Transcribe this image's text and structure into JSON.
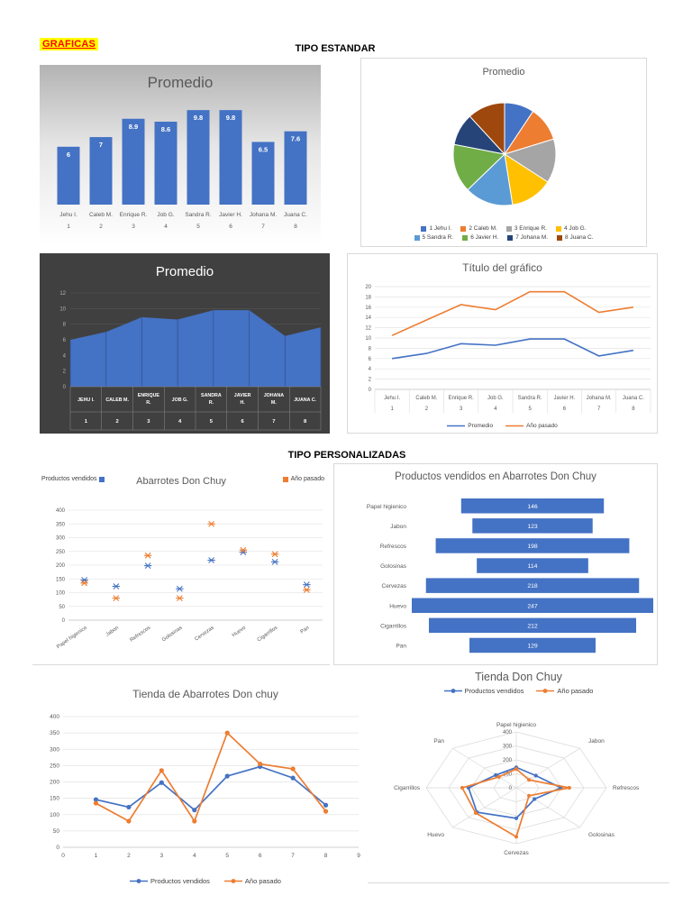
{
  "page": {
    "tag_label": "GRAFICAS",
    "section_standard": "TIPO ESTANDAR",
    "section_custom": "TIPO PERSONALIZADAS"
  },
  "colors": {
    "accent_blue": "#4472c4",
    "accent_orange": "#ed7d31",
    "title_gray": "#595959",
    "tag_text": "#ff0000",
    "tag_highlight": "#ffff00",
    "area_background": "#404040"
  },
  "chart_data": [
    {
      "type": "bar",
      "title": "Promedio",
      "categories": [
        "Jehu I.",
        "Caleb M.",
        "Enrique R.",
        "Job G.",
        "Sandra R.",
        "Javier H.",
        "Johana M.",
        "Juana C."
      ],
      "numbers": [
        "1",
        "2",
        "3",
        "4",
        "5",
        "6",
        "7",
        "8"
      ],
      "values": [
        6,
        7,
        8.9,
        8.6,
        9.8,
        9.8,
        6.5,
        7.6
      ],
      "ylim": [
        0,
        10
      ],
      "bar_color": "#4472c4"
    },
    {
      "type": "pie",
      "title": "Promedio",
      "legend": [
        "1 Jehu I.",
        "2 Caleb M.",
        "3 Enrique R.",
        "4 Job G.",
        "5 Sandra R.",
        "6 Javier H.",
        "7 Johana M.",
        "8 Juana C."
      ],
      "values": [
        6,
        7,
        8.9,
        8.6,
        9.8,
        9.8,
        6.5,
        7.6
      ],
      "colors": [
        "#4472c4",
        "#ed7d31",
        "#a5a5a5",
        "#ffc000",
        "#5b9bd5",
        "#70ad47",
        "#264478",
        "#9e480e"
      ]
    },
    {
      "type": "area",
      "title": "Promedio",
      "categories": [
        "JEHU I.",
        "CALEB M.",
        "ENRIQUE R.",
        "JOB G.",
        "SANDRA R.",
        "JAVIER H.",
        "JOHANA M.",
        "JUANA C."
      ],
      "numbers": [
        "1",
        "2",
        "3",
        "4",
        "5",
        "6",
        "7",
        "8"
      ],
      "values": [
        6,
        7,
        8.9,
        8.6,
        9.8,
        9.8,
        6.5,
        7.6
      ],
      "ylim": [
        0,
        12
      ],
      "ystep": 2,
      "fill": "#4472c4",
      "background": "#404040"
    },
    {
      "type": "line",
      "title": "Título del gráfico",
      "categories": [
        "Jehu I.",
        "Caleb M.",
        "Enrique R.",
        "Job G.",
        "Sandra R.",
        "Javier H.",
        "Johana M.",
        "Juana C."
      ],
      "numbers": [
        "1",
        "2",
        "3",
        "4",
        "5",
        "6",
        "7",
        "8"
      ],
      "series": [
        {
          "name": "Promedio",
          "color": "#4472c4",
          "values": [
            6,
            7,
            8.9,
            8.6,
            9.8,
            9.8,
            6.5,
            7.6
          ]
        },
        {
          "name": "Año pasado",
          "color": "#ed7d31",
          "values": [
            10.5,
            13.5,
            16.5,
            15.5,
            19,
            19,
            15,
            16
          ]
        }
      ],
      "ylim": [
        0,
        20
      ],
      "ystep": 2
    },
    {
      "type": "scatter",
      "title": "Abarrotes Don Chuy",
      "categories": [
        "Papel higienico",
        "Jabon",
        "Refrescos",
        "Golosinas",
        "Cervezas",
        "Huevo",
        "Cigarrillos",
        "Pan"
      ],
      "series": [
        {
          "name": "Productos vendidos",
          "color": "#4472c4",
          "values": [
            146,
            123,
            198,
            114,
            218,
            247,
            212,
            129
          ]
        },
        {
          "name": "Año pasado",
          "color": "#ed7d31",
          "values": [
            135,
            80,
            235,
            80,
            350,
            255,
            240,
            110
          ]
        }
      ],
      "ylim": [
        0,
        400
      ],
      "ystep": 50
    },
    {
      "type": "funnel",
      "title": "Productos vendidos en Abarrotes Don Chuy",
      "categories": [
        "Papel higienico",
        "Jabon",
        "Refrescos",
        "Golosinas",
        "Cervezas",
        "Huevo",
        "Cigarrillos",
        "Pan"
      ],
      "values": [
        146,
        123,
        198,
        114,
        218,
        247,
        212,
        129
      ],
      "bar_color": "#4472c4"
    },
    {
      "type": "line-numeric",
      "title": "Tienda de Abarrotes Don chuy",
      "x": [
        1,
        2,
        3,
        4,
        5,
        6,
        7,
        8
      ],
      "xlim": [
        0,
        9
      ],
      "series": [
        {
          "name": "Productos vendidos",
          "color": "#4472c4",
          "values": [
            146,
            123,
            198,
            114,
            218,
            247,
            212,
            129
          ]
        },
        {
          "name": "Año pasado",
          "color": "#ed7d31",
          "values": [
            135,
            80,
            235,
            80,
            350,
            255,
            240,
            110
          ]
        }
      ],
      "ylim": [
        0,
        400
      ],
      "ystep": 50
    },
    {
      "type": "radar",
      "title": "Tienda Don Chuy",
      "categories": [
        "Papel higienico",
        "Jabon",
        "Refrescos",
        "Golosinas",
        "Cervezas",
        "Huevo",
        "Cigarrillos",
        "Pan"
      ],
      "rings": [
        0,
        100,
        200,
        300,
        400
      ],
      "rmax": 400,
      "series": [
        {
          "name": "Productos vendidos",
          "color": "#4472c4",
          "values": [
            146,
            123,
            198,
            114,
            218,
            247,
            212,
            129
          ]
        },
        {
          "name": "Año pasado",
          "color": "#ed7d31",
          "values": [
            135,
            80,
            235,
            80,
            350,
            255,
            240,
            110
          ]
        }
      ]
    }
  ]
}
